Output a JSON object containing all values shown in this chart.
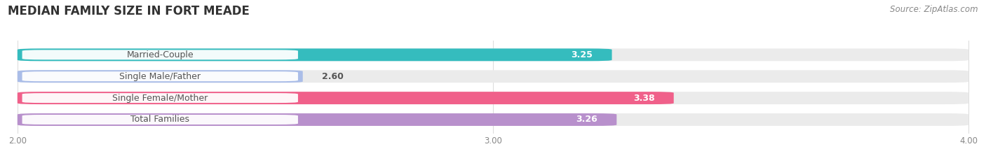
{
  "title": "MEDIAN FAMILY SIZE IN FORT MEADE",
  "source": "Source: ZipAtlas.com",
  "categories": [
    "Married-Couple",
    "Single Male/Father",
    "Single Female/Mother",
    "Total Families"
  ],
  "values": [
    3.25,
    2.6,
    3.38,
    3.26
  ],
  "bar_colors": [
    "#35BCBE",
    "#AABDE8",
    "#F0608A",
    "#B890CC"
  ],
  "bar_bg_colors": [
    "#EBEBEB",
    "#EBEBEB",
    "#EBEBEB",
    "#EBEBEB"
  ],
  "value_labels": [
    "3.25",
    "2.60",
    "3.38",
    "3.26"
  ],
  "value_inside": [
    true,
    false,
    true,
    true
  ],
  "xmin": 2.0,
  "xmax": 4.0,
  "xticks": [
    2.0,
    3.0,
    4.0
  ],
  "xtick_labels": [
    "2.00",
    "3.00",
    "4.00"
  ],
  "bar_height": 0.58,
  "label_fontsize": 9.0,
  "value_fontsize": 9.0,
  "title_fontsize": 12,
  "source_fontsize": 8.5,
  "background_color": "#FFFFFF",
  "title_color": "#333333",
  "source_color": "#888888",
  "label_bg_color": "#FFFFFF",
  "label_text_color": "#555555"
}
